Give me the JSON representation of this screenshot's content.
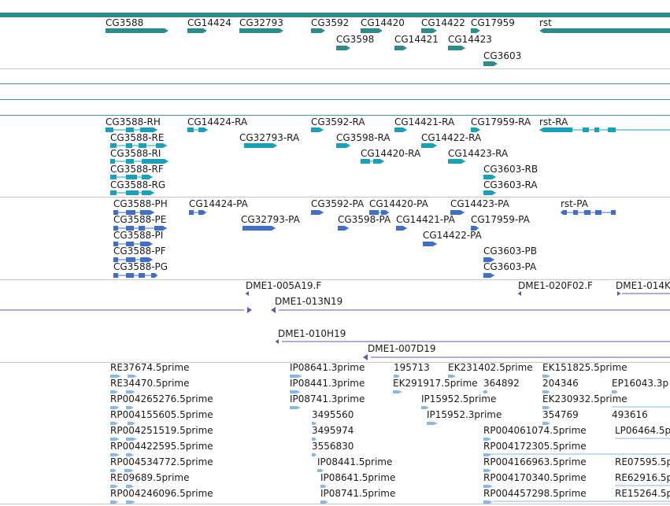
{
  "colors": {
    "gene": "#2e8b8b",
    "gene_top_bar": "#2e8b8b",
    "transcript": "#1aa0b8",
    "protein": "#3f6fc9",
    "clone": "#6e54a8",
    "est": "#8ab8e0",
    "separator_teal": "#3aa0a8",
    "separator_gray": "#c8c8c8",
    "label_text": "#1a1a1a"
  },
  "tracks": {
    "genes": {
      "labels": [
        "CG3588",
        "CG14424",
        "CG32793",
        "CG3592",
        "CG14420",
        "CG14422",
        "CG17959",
        "rst",
        "CG3598",
        "CG14421",
        "CG14423",
        "CG3603"
      ]
    },
    "transcripts": {
      "labels": [
        "CG3588-RH",
        "CG14424-RA",
        "CG3592-RA",
        "CG14421-RA",
        "CG17959-RA",
        "rst-RA",
        "CG3588-RE",
        "CG32793-RA",
        "CG3598-RA",
        "CG14422-RA",
        "CG3588-RI",
        "CG14420-RA",
        "CG14423-RA",
        "CG3588-RF",
        "CG3603-RB",
        "CG3588-RG",
        "CG3603-RA"
      ]
    },
    "proteins": {
      "labels": [
        "CG3588-PH",
        "CG14424-PA",
        "CG3592-PA",
        "CG14420-PA",
        "CG14423-PA",
        "rst-PA",
        "CG3588-PE",
        "CG32793-PA",
        "CG3598-PA",
        "CG14421-PA",
        "CG17959-PA",
        "CG3588-PI",
        "CG14422-PA",
        "CG3588-PF",
        "CG3603-PB",
        "CG3588-PG",
        "CG3603-PA"
      ]
    },
    "clones": {
      "labels": [
        "DME1-005A19.F",
        "DME1-020F02.F",
        "DME1-014K",
        "DME1-013N19",
        "DME1-010H19",
        "DME1-007D19"
      ]
    },
    "ests": {
      "labels": [
        "RE37674.5prime",
        "IP08641.3prime",
        "195713",
        "EK231402.5prime",
        "EK151825.5prime",
        "RE34470.5prime",
        "IP08441.3prime",
        "EK291917.5prime",
        "364892",
        "204346",
        "EP16043.3p",
        "RP004265276.5prime",
        "IP08741.3prime",
        "IP15952.5prime",
        "EK230932.5prime",
        "RP004155605.5prime",
        "3495560",
        "IP15952.3prime",
        "354769",
        "493616",
        "RP004251519.5prime",
        "3495974",
        "RP004061074.5prime",
        "LP06464.5p",
        "RP004422595.5prime",
        "3556830",
        "RP004172305.5prime",
        "RP004534772.5prime",
        "IP08441.5prime",
        "RP004166963.5prime",
        "RE07595.5p",
        "RE09689.5prime",
        "IP08641.5prime",
        "RP004170340.5prime",
        "RE62916.5p",
        "RP004246096.5prime",
        "IP08741.5prime",
        "RP004457298.5prime",
        "RE15264.5p"
      ]
    }
  }
}
